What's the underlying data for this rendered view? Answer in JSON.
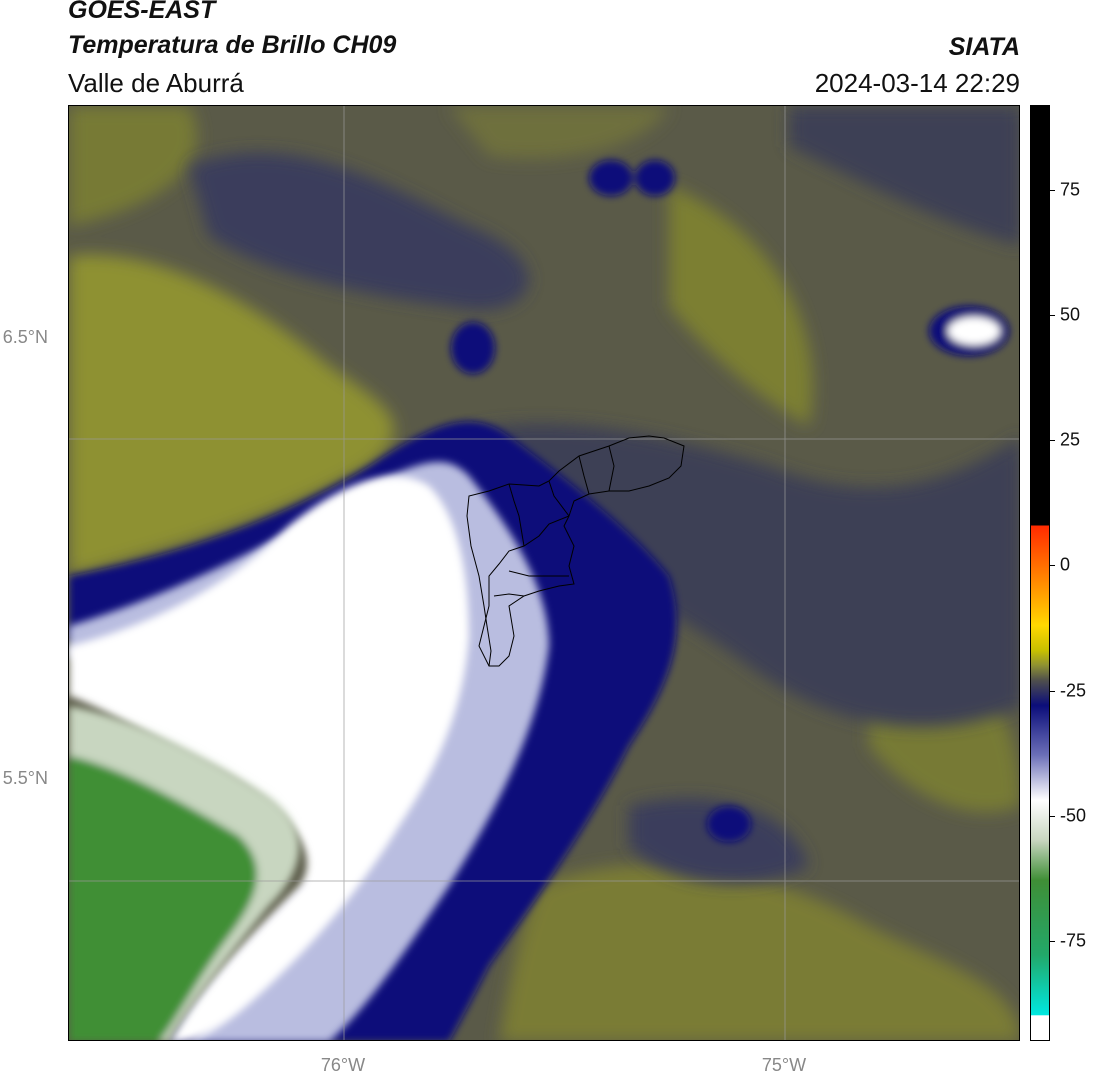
{
  "header": {
    "title_line1": "GOES-EAST",
    "title_line2": "Temperatura de Brillo CH09",
    "subtitle": "Valle de Aburrá",
    "organization": "SIATA",
    "datetime": "2024-03-14 22:29"
  },
  "map": {
    "lat_labels": [
      "6.5°N",
      "5.5°N"
    ],
    "lon_labels": [
      "76°W",
      "75°W"
    ],
    "colors": {
      "olive": "#8e9132",
      "dark_olive": "#4f4f4c",
      "slate": "#3b3d5c",
      "navy": "#0b0d7a",
      "lavender": "#b9bde0",
      "white": "#ffffff",
      "light_green": "#c8d6c0",
      "green": "#3f8f36"
    }
  },
  "colorbar": {
    "ticks": [
      "75",
      "50",
      "25",
      "0",
      "-25",
      "-50",
      "-75"
    ],
    "tick_values": [
      75,
      50,
      25,
      0,
      -25,
      -50,
      -75
    ],
    "range": [
      -95,
      92
    ]
  }
}
